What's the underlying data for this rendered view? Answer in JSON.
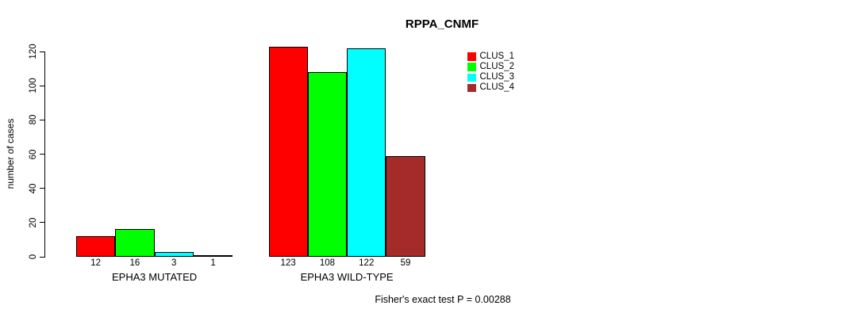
{
  "title": "RPPA_CNMF",
  "y_axis": {
    "label": "number of cases",
    "ticks": [
      0,
      20,
      40,
      60,
      80,
      100,
      120
    ]
  },
  "legend": {
    "entries": [
      {
        "label": "CLUS_1",
        "color": "#FF0000"
      },
      {
        "label": "CLUS_2",
        "color": "#00FF00"
      },
      {
        "label": "CLUS_3",
        "color": "#00FFFF"
      },
      {
        "label": "CLUS_4",
        "color": "#A52A2A"
      }
    ]
  },
  "footer": "Fisher's exact test P = 0.00288",
  "chart_data": {
    "type": "bar",
    "title": "RPPA_CNMF",
    "ylabel": "number of cases",
    "xlabel": "",
    "ylim": [
      0,
      120
    ],
    "yticks": [
      0,
      20,
      40,
      60,
      80,
      100,
      120
    ],
    "grid": false,
    "legend_position": "top-right",
    "bar_outline_color": "#000000",
    "categories": [
      "EPHA3 MUTATED",
      "EPHA3 WILD-TYPE"
    ],
    "series": [
      {
        "name": "CLUS_1",
        "color": "#FF0000",
        "values": [
          12,
          123
        ]
      },
      {
        "name": "CLUS_2",
        "color": "#00FF00",
        "values": [
          16,
          108
        ]
      },
      {
        "name": "CLUS_3",
        "color": "#00FFFF",
        "values": [
          3,
          122
        ]
      },
      {
        "name": "CLUS_4",
        "color": "#A52A2A",
        "values": [
          1,
          59
        ]
      }
    ],
    "annotation": "Fisher's exact test P = 0.00288"
  }
}
